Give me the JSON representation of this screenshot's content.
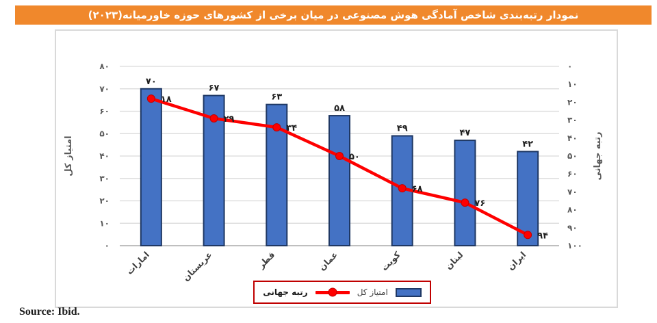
{
  "header": {
    "title": "نمودار رتبه‌بندی شاخص آمادگی هوش مصنوعی در میان برخی از کشورهای حوزه خاورمیانه(۲۰۲۳)",
    "bg_color": "#F0882C",
    "text_color": "#FFFFFF"
  },
  "chart_data": {
    "type": "bar",
    "subtype": "bar-line-combo",
    "categories": [
      "امارات",
      "عربستان",
      "قطر",
      "عمان",
      "کویت",
      "لبنان",
      "ایران"
    ],
    "series": [
      {
        "name": "امتیاز کل",
        "type": "bar",
        "axis": "left",
        "values": [
          70,
          67,
          63,
          58,
          49,
          47,
          42
        ],
        "fill": "#4472C4",
        "stroke": "#1F3864"
      },
      {
        "name": "رتبه جهانی",
        "type": "line",
        "axis": "right",
        "values": [
          18,
          29,
          34,
          50,
          68,
          76,
          94
        ],
        "color": "#FE0000",
        "marker_stroke": "#C00000"
      }
    ],
    "left_axis": {
      "title": "امتیاز کل",
      "min": 0,
      "max": 80,
      "step": 10
    },
    "right_axis": {
      "title": "رتبه جهانی",
      "min": 0,
      "max": 100,
      "step": 10,
      "inverted": true
    },
    "digit_style": "persian",
    "grid": true,
    "gridline_color": "#D9D9D9",
    "axisline_color": "#BFBFBF",
    "tick_label_color": "#595959",
    "data_label_color": "#1F1F1F",
    "category_label_color": "#3F3F3F",
    "legend_position": "bottom-center"
  },
  "legend": {
    "border_color": "#C00000",
    "items": [
      {
        "label": "رتبه جهانی",
        "bold": true,
        "marker": "red-line-dot"
      },
      {
        "label": "امتیاز کل",
        "bold": false,
        "marker": "blue-bar"
      }
    ]
  },
  "source": {
    "label": "Source: Ibid."
  }
}
